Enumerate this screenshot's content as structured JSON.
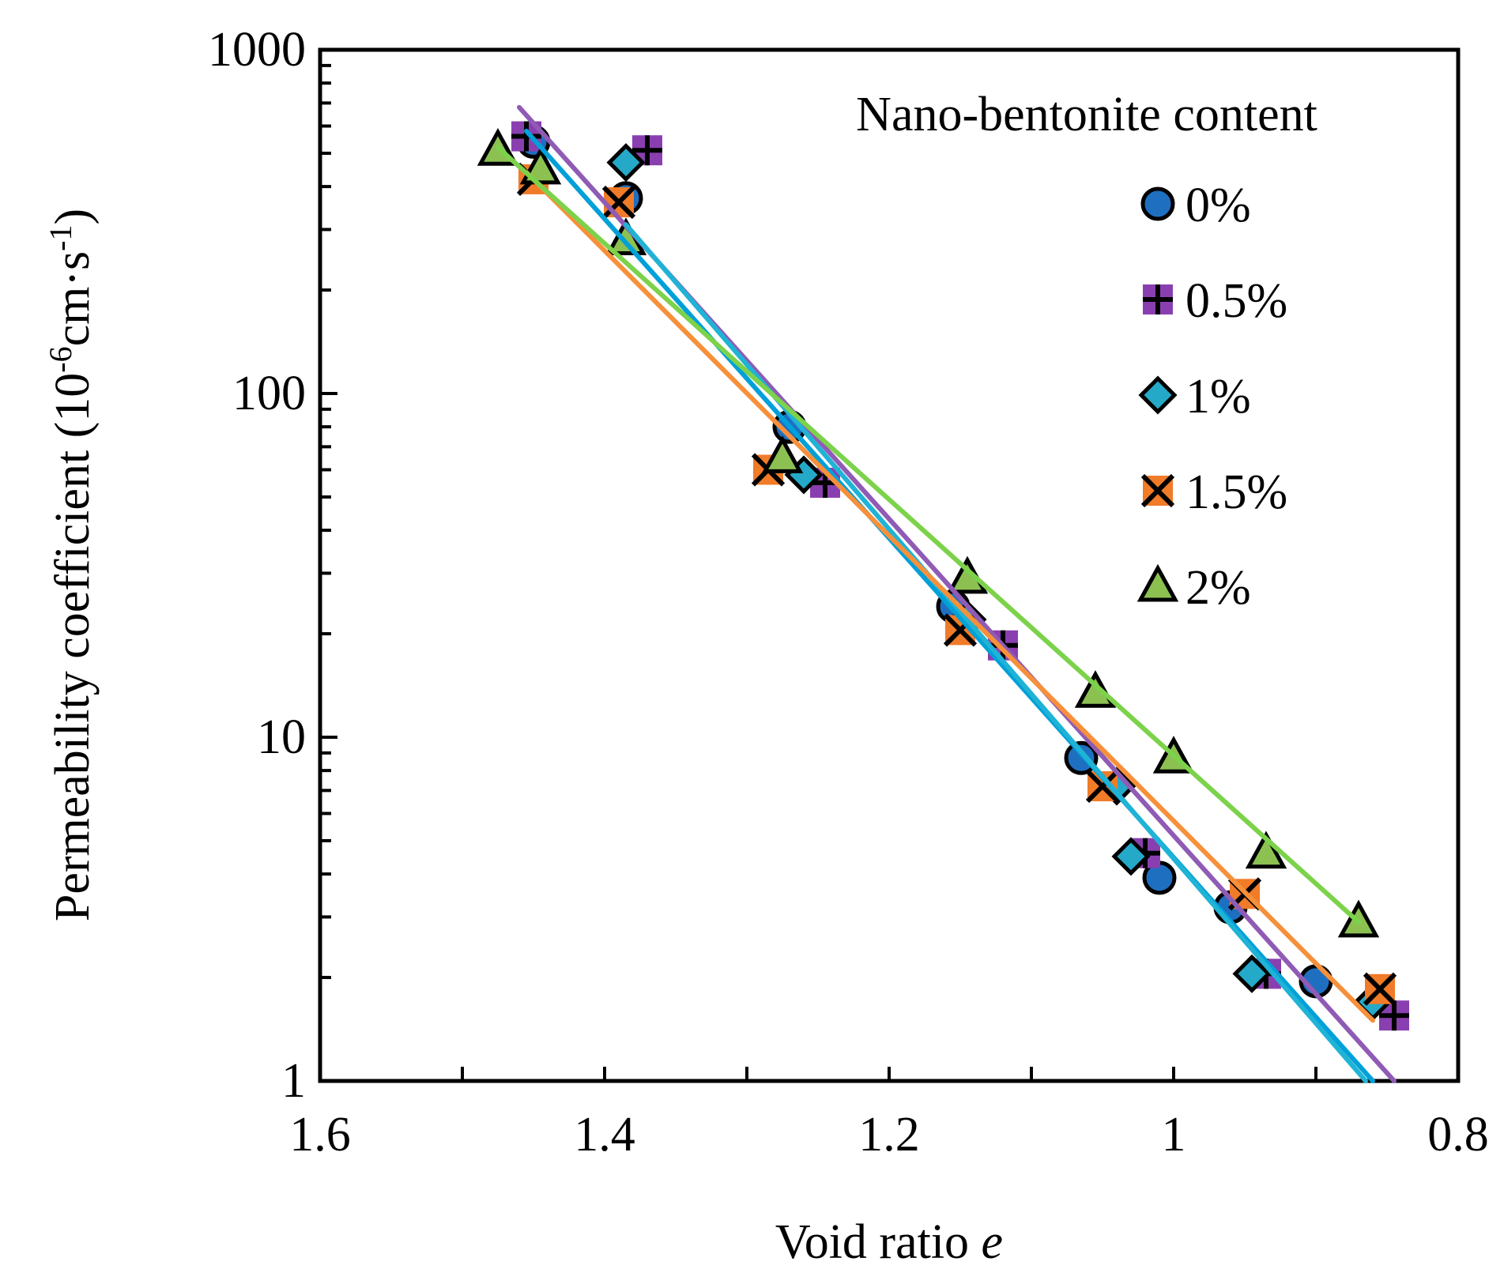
{
  "chart_data": {
    "type": "scatter",
    "title": "",
    "xlabel": "Void ratio",
    "xlabel_italic": "e",
    "ylabel": "Permeability coefficient (10",
    "ylabel_exp1": "-6",
    "ylabel_mid": "cm·s",
    "ylabel_exp2": "-1",
    "ylabel_end": ")",
    "xlim": [
      1.6,
      0.8
    ],
    "x_reversed": true,
    "ylim": [
      1,
      1000
    ],
    "y_scale": "log",
    "x_ticks": [
      1.6,
      1.4,
      1.2,
      1.0,
      0.8
    ],
    "x_tick_labels": [
      "1.6",
      "1.4",
      "1.2",
      "1",
      "0.8"
    ],
    "y_ticks": [
      1,
      10,
      100,
      1000
    ],
    "y_tick_labels": [
      "1",
      "10",
      "100",
      "1000"
    ],
    "legend_title": "Nano-bentonite content",
    "legend_position": "top-right",
    "series": [
      {
        "name": "0%",
        "marker": "circle",
        "color": "#1f6fc1",
        "line_color": "#00a0d8",
        "points": [
          [
            1.45,
            540
          ],
          [
            1.385,
            370
          ],
          [
            1.27,
            80
          ],
          [
            1.155,
            24
          ],
          [
            1.065,
            8.7
          ],
          [
            1.01,
            3.9
          ],
          [
            0.96,
            3.2
          ],
          [
            0.9,
            1.95
          ]
        ],
        "fit": [
          [
            1.455,
            580
          ],
          [
            0.86,
            1.0
          ]
        ]
      },
      {
        "name": "0.5%",
        "marker": "plus-square",
        "color": "#8a3fb0",
        "line_color": "#8f5bb5",
        "points": [
          [
            1.455,
            560
          ],
          [
            1.37,
            510
          ],
          [
            1.245,
            55
          ],
          [
            1.12,
            18.5
          ],
          [
            1.02,
            4.6
          ],
          [
            0.935,
            2.05
          ],
          [
            0.845,
            1.55
          ]
        ],
        "fit": [
          [
            1.46,
            680
          ],
          [
            0.845,
            1.0
          ]
        ]
      },
      {
        "name": "1%",
        "marker": "diamond",
        "color": "#25a9c9",
        "line_color": "#1fb3d6",
        "points": [
          [
            1.385,
            470
          ],
          [
            1.26,
            58
          ],
          [
            1.145,
            22
          ],
          [
            1.04,
            7.2
          ],
          [
            1.03,
            4.5
          ],
          [
            0.945,
            2.05
          ],
          [
            0.86,
            1.7
          ]
        ],
        "fit": [
          [
            1.385,
            310
          ],
          [
            0.865,
            1.0
          ]
        ]
      },
      {
        "name": "1.5%",
        "marker": "x-square",
        "color": "#f07b28",
        "line_color": "#f7903a",
        "points": [
          [
            1.45,
            420
          ],
          [
            1.39,
            360
          ],
          [
            1.285,
            60
          ],
          [
            1.15,
            20.5
          ],
          [
            1.05,
            7.2
          ],
          [
            0.95,
            3.5
          ],
          [
            0.855,
            1.85
          ]
        ],
        "fit": [
          [
            1.455,
            440
          ],
          [
            0.86,
            1.5
          ]
        ]
      },
      {
        "name": "2%",
        "marker": "triangle",
        "color": "#8cc152",
        "line_color": "#7cd24a",
        "points": [
          [
            1.475,
            510
          ],
          [
            1.445,
            450
          ],
          [
            1.385,
            280
          ],
          [
            1.275,
            65
          ],
          [
            1.145,
            29
          ],
          [
            1.055,
            13.5
          ],
          [
            1.0,
            8.7
          ],
          [
            0.935,
            4.6
          ],
          [
            0.87,
            2.9
          ]
        ],
        "fit": [
          [
            1.475,
            520
          ],
          [
            0.87,
            2.9
          ]
        ]
      }
    ]
  }
}
